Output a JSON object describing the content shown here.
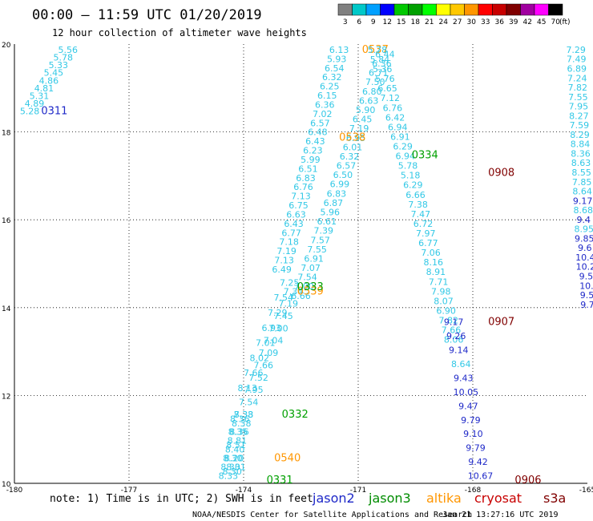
{
  "header": {
    "title": "00:00 – 11:59 UTC 01/20/2019",
    "subtitle": "12 hour collection of altimeter wave heights"
  },
  "colorbar": {
    "ticks": [
      "3",
      "6",
      "9",
      "12",
      "15",
      "18",
      "21",
      "24",
      "27",
      "30",
      "33",
      "36",
      "39",
      "42",
      "45",
      "70"
    ],
    "unit": "(ft)",
    "colors": [
      "#808080",
      "#00c8c8",
      "#00a0ff",
      "#0000ff",
      "#00c800",
      "#00a000",
      "#00ff00",
      "#ffff00",
      "#ffc800",
      "#ff9600",
      "#ff0000",
      "#c80000",
      "#800000",
      "#a000a0",
      "#ff00ff",
      "#000000"
    ]
  },
  "footer": {
    "note": "note: 1) Time is in UTC; 2) SWH is in feet",
    "legend": [
      {
        "label": "jason2",
        "color": "#1e28c8"
      },
      {
        "label": "jason3",
        "color": "#008c00"
      },
      {
        "label": "altika",
        "color": "#ff9600"
      },
      {
        "label": "cryosat",
        "color": "#c80000"
      },
      {
        "label": "s3a",
        "color": "#800000"
      }
    ],
    "credit": "NOAA/NESDIS Center for Satellite Applications and Research",
    "timestamp": "Jan 21 13:27:16 UTC 2019"
  },
  "chart_data": {
    "type": "scatter",
    "xlim": [
      -180,
      -165
    ],
    "ylim": [
      10,
      20
    ],
    "x_ticks": [
      "-180",
      "-177",
      "-174",
      "-171",
      "-168",
      "-165"
    ],
    "y_ticks": [
      "10",
      "12",
      "14",
      "16",
      "18",
      "20"
    ],
    "grid": true,
    "color_scale": {
      "bounds": [
        3,
        6,
        9,
        12,
        15,
        18,
        21,
        24,
        27,
        30,
        33,
        36,
        39,
        42,
        45,
        70
      ],
      "colors": [
        "#32c8e6",
        "#1e28c8",
        "#00a000"
      ]
    },
    "tracks": [
      {
        "name": "track-0311",
        "label": "0311",
        "label_x": -179.3,
        "label_y": 18.4,
        "label_color": "#1e28c8",
        "lon_start": -178.6,
        "lat_start": 19.8,
        "lon_end": -179.6,
        "lat_end": 18.4,
        "values": [
          "5.56",
          "5.78",
          "5.33",
          "5.45",
          "4.86",
          "4.81",
          "5.31",
          "4.89",
          "5.28"
        ]
      },
      {
        "name": "track-0537",
        "label": "0537",
        "label_x": -170.9,
        "label_y": 19.8,
        "label_color": "#ff9600",
        "lon_start": -171.5,
        "lat_start": 19.8,
        "lon_end": -173.0,
        "lat_end": 14.8,
        "values": [
          "6.13",
          "5.93",
          "6.54",
          "6.32",
          "6.25",
          "6.15",
          "6.36",
          "7.02",
          "6.57",
          "6.48",
          "6.43",
          "6.23",
          "5.99",
          "6.51",
          "6.83",
          "6.76",
          "7.13",
          "6.75",
          "6.63",
          "6.43",
          "6.77",
          "7.18",
          "7.19",
          "7.13",
          "6.49"
        ]
      },
      {
        "name": "track-0538",
        "label": "0538",
        "label_x": -171.5,
        "label_y": 17.8,
        "label_color": "#ff9600",
        "lon_start": -170.3,
        "lat_start": 19.7,
        "lon_end": -172.5,
        "lat_end": 14.2,
        "values": [
          "6.44",
          "6.36",
          "6.71",
          "7.50",
          "6.80",
          "6.63",
          "5.90",
          "6.45",
          "7.19",
          "6.95",
          "6.01",
          "6.32",
          "6.57",
          "6.50",
          "6.99",
          "6.83",
          "6.87",
          "5.96",
          "6.61",
          "7.39",
          "7.57",
          "7.55",
          "6.91",
          "7.07",
          "7.54",
          "7.00",
          "6.66"
        ]
      },
      {
        "name": "track-0539",
        "label": "0539",
        "label_x": -172.6,
        "label_y": 14.3,
        "label_color": "#ff9600",
        "lon_start": -172.7,
        "lat_start": 14.3,
        "lon_end": -174.0,
        "lat_end": 11.5,
        "values": [
          "7.34",
          "7.19",
          "7.45",
          "7.00",
          "7.04",
          "7.09",
          "7.66",
          "7.52",
          "7.95",
          "7.54",
          "7.33"
        ]
      },
      {
        "name": "track-0333",
        "label": "0333",
        "label_x": -172.6,
        "label_y": 14.4,
        "label_color": "#00a000",
        "lon_start": -172.8,
        "lat_start": 14.5,
        "lon_end": -173.9,
        "lat_end": 12.1,
        "values": [
          "7.25",
          "7.54",
          "7.29",
          "6.93",
          "7.01",
          "8.02",
          "7.66",
          "8.13"
        ]
      },
      {
        "name": "track-0332",
        "label": "0332",
        "label_x": -173.0,
        "label_y": 11.5,
        "label_color": "#00a000",
        "lon_start": -174.0,
        "lat_start": 11.5,
        "lon_end": -174.4,
        "lat_end": 10.1,
        "values": [
          "8.38",
          "8.38",
          "8.36",
          "8.81",
          "8.40",
          "8.30",
          "8.30",
          "8.33"
        ]
      },
      {
        "name": "track-0540",
        "label": "0540",
        "label_x": -173.2,
        "label_y": 10.5,
        "label_color": "#ff9600",
        "lon_start": -174.1,
        "lat_start": 11.4,
        "lon_end": -174.3,
        "lat_end": 10.2,
        "values": [
          "8.36",
          "8.35",
          "8.51",
          "8.20",
          "8.30"
        ]
      },
      {
        "name": "track-0331",
        "label": "0331",
        "label_x": -173.4,
        "label_y": 10.0,
        "label_color": "#00a000",
        "lon_start": -174.2,
        "lat_start": 10.3,
        "lon_end": -174.3,
        "lat_end": 10.05,
        "values": [
          "8.31"
        ]
      },
      {
        "name": "track-0334",
        "label": "0334",
        "label_x": -169.6,
        "label_y": 17.4,
        "label_color": "#00a000",
        "lon_start": -170.5,
        "lat_start": 19.8,
        "lon_end": -168.5,
        "lat_end": 13.2,
        "values": [
          "5.78",
          "5.84",
          "5.36",
          "5.76",
          "6.65",
          "7.12",
          "6.76",
          "6.42",
          "6.94",
          "6.91",
          "6.29",
          "6.94",
          "5.78",
          "5.18",
          "6.29",
          "6.66",
          "7.38",
          "7.47",
          "6.72",
          "7.97",
          "6.77",
          "7.06",
          "8.16",
          "8.91",
          "7.71",
          "7.98",
          "8.07",
          "6.90",
          "7.82",
          "7.66",
          "8.06"
        ]
      },
      {
        "name": "track-0908",
        "label": "0908",
        "label_x": -167.6,
        "label_y": 17.0,
        "label_color": "#800000",
        "lon_start": -168.5,
        "lat_start": 13.6,
        "lon_end": -167.8,
        "lat_end": 10.1,
        "values": [
          "9.17",
          "9.26",
          "9.14",
          "8.64",
          "9.43",
          "10.05",
          "9.47",
          "9.79",
          "9.10",
          "9.79",
          "9.42",
          "10.67"
        ]
      },
      {
        "name": "track-0906",
        "label": "0906",
        "label_x": -166.9,
        "label_y": 10.0,
        "label_color": "#800000",
        "lon_start": -166.2,
        "lat_start": 10.0,
        "lon_end": -166.2,
        "lat_end": 10.0,
        "values": []
      },
      {
        "name": "track-0907",
        "label": "0907",
        "label_x": -167.6,
        "label_y": 13.6,
        "label_color": "#800000",
        "lon_start": -167.6,
        "lat_start": 13.6,
        "lon_end": -167.6,
        "lat_end": 13.6,
        "values": []
      },
      {
        "name": "track-right-edge",
        "label": "",
        "label_x": -165.0,
        "label_y": 20.0,
        "label_color": "#1e28c8",
        "lon_start": -165.3,
        "lat_start": 19.8,
        "lon_end": -165.0,
        "lat_end": 14.0,
        "values": [
          "7.29",
          "7.49",
          "6.89",
          "7.24",
          "7.82",
          "7.55",
          "7.95",
          "8.27",
          "7.59",
          "8.29",
          "8.84",
          "8.36",
          "8.63",
          "8.55",
          "7.85",
          "8.64",
          "9.17",
          "8.68",
          "9.4",
          "8.95",
          "9.85",
          "9.6",
          "10.4",
          "10.2",
          "9.5",
          "10.",
          "9.5",
          "9.7"
        ]
      }
    ]
  }
}
